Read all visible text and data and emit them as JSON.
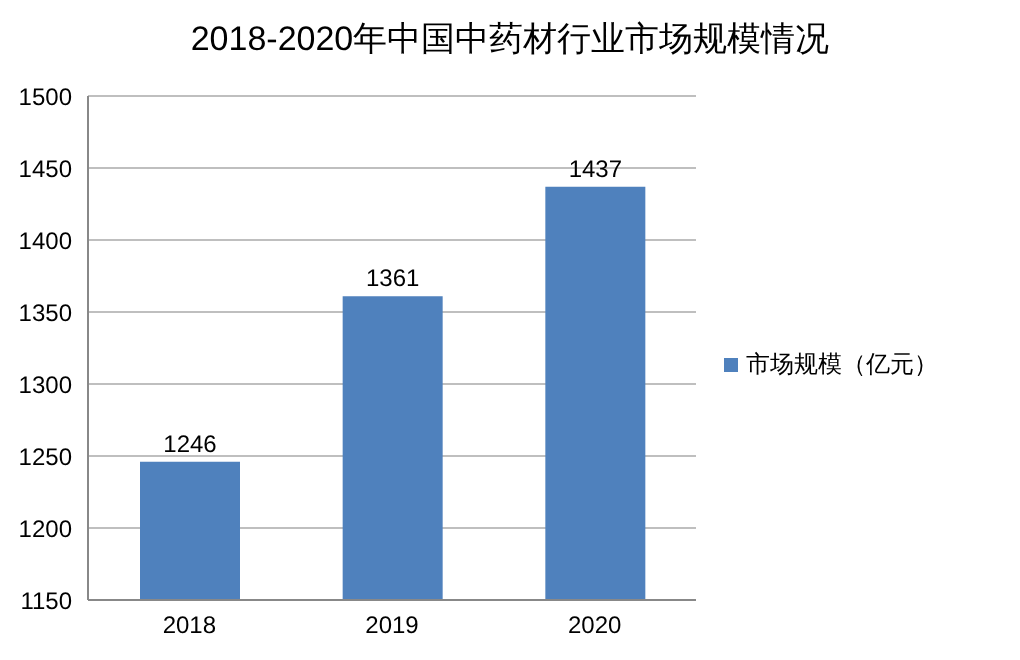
{
  "chart_data": {
    "type": "bar",
    "title": "2018-2020年中国中药材行业市场规模情况",
    "categories": [
      "2018",
      "2019",
      "2020"
    ],
    "series": [
      {
        "name": "市场规模（亿元）",
        "color": "#4f81bd",
        "values": [
          1246,
          1361,
          1437
        ]
      }
    ],
    "ylim": [
      1150,
      1500
    ],
    "yticks": [
      1150,
      1200,
      1250,
      1300,
      1350,
      1400,
      1450,
      1500
    ],
    "grid": "y",
    "legend": "right",
    "data_labels": true
  }
}
